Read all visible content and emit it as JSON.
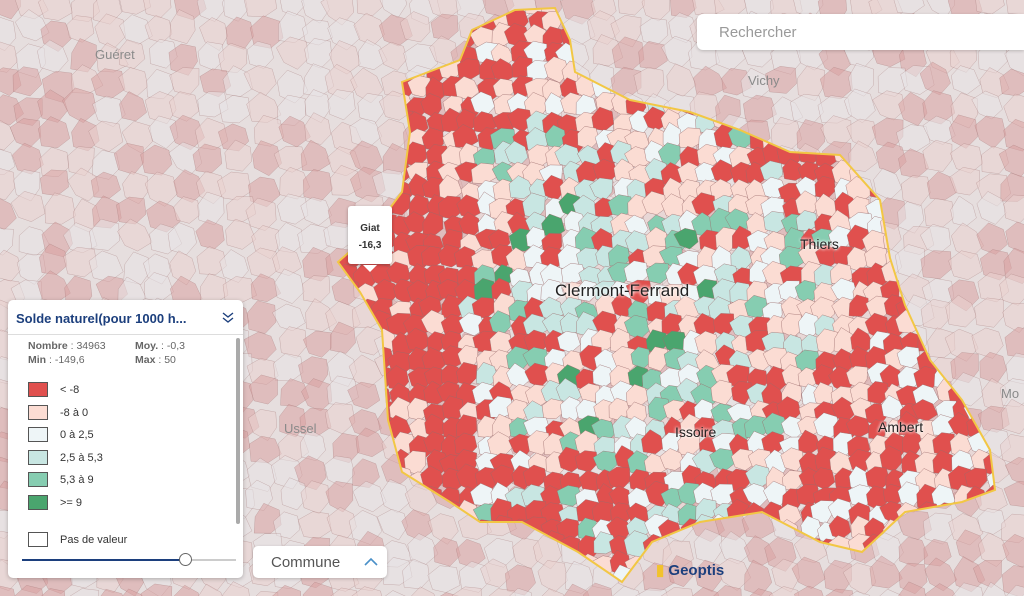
{
  "search": {
    "placeholder": "Rechercher"
  },
  "map": {
    "labels": [
      "Guéret",
      "Vichy",
      "Ussel",
      "Mo"
    ],
    "cities": [
      "Thiers",
      "Clermont-Ferrand",
      "Issoire",
      "Ambert"
    ]
  },
  "tooltip": {
    "name": "Giat",
    "value": "-16,3"
  },
  "legend": {
    "title": "Solde naturel(pour 1000 h...",
    "stats": [
      {
        "label": "Nombre",
        "value": "34963"
      },
      {
        "label": "Moy.",
        "value": "-0,3"
      },
      {
        "label": "Min",
        "value": "-149,6"
      },
      {
        "label": "Max",
        "value": "50"
      }
    ],
    "classes": [
      {
        "label": "< -8",
        "color": "#e0504e"
      },
      {
        "label": "-8 à 0",
        "color": "#fbdcd3"
      },
      {
        "label": "0 à 2,5",
        "color": "#eef5f7"
      },
      {
        "label": "2,5 à 5,3",
        "color": "#c8e6e2"
      },
      {
        "label": "5,3 à 9",
        "color": "#86cdb1"
      },
      {
        "label": ">= 9",
        "color": "#4aa56e"
      }
    ],
    "no_value": "Pas de valeur"
  },
  "layer_select": "Commune",
  "brand": "Geoptis"
}
